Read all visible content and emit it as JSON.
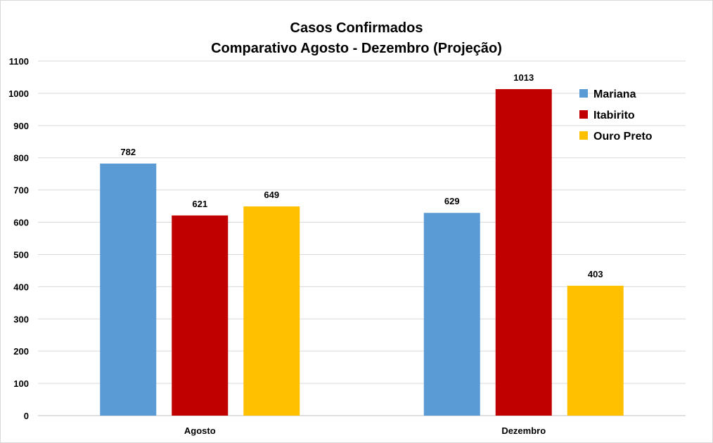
{
  "chart_data": {
    "type": "bar",
    "title": "Casos Confirmados",
    "subtitle": "Comparativo Agosto - Dezembro (Projeção)",
    "categories": [
      "Agosto",
      "Dezembro"
    ],
    "series": [
      {
        "name": "Mariana",
        "values": [
          782,
          629
        ],
        "color": "#5b9bd5"
      },
      {
        "name": "Itabirito",
        "values": [
          621,
          1013
        ],
        "color": "#c00000"
      },
      {
        "name": "Ouro Preto",
        "values": [
          649,
          403
        ],
        "color": "#ffc000"
      }
    ],
    "ylim": [
      0,
      1100
    ],
    "yticks": [
      "0",
      "100",
      "200",
      "300",
      "400",
      "500",
      "600",
      "700",
      "800",
      "900",
      "1000",
      "1100"
    ],
    "grid": true,
    "legend_position": "top-right",
    "data_labels": true
  }
}
